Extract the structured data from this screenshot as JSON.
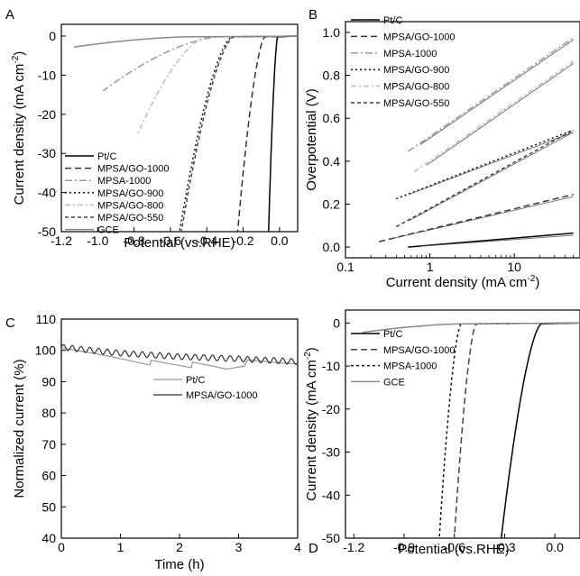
{
  "chart_data": [
    {
      "panel": "A",
      "type": "line",
      "xlabel": "Potential (vs.RHE)",
      "ylabel_main": "Current density (mA cm",
      "ylabel_sup": "-2",
      "ylabel_tail": ")",
      "xlim": [
        -1.2,
        0.1
      ],
      "ylim": [
        -50,
        3
      ],
      "x_ticks": [
        "-1.2",
        "-1.0",
        "-0.8",
        "-0.6",
        "-0.4",
        "-0.2",
        "0.0"
      ],
      "x_tick_values": [
        -1.2,
        -1.0,
        -0.8,
        -0.6,
        -0.4,
        -0.2,
        0.0
      ],
      "y_ticks": [
        "0",
        "-10",
        "-20",
        "-30",
        "-40",
        "-50"
      ],
      "y_tick_values": [
        0,
        -10,
        -20,
        -30,
        -40,
        -50
      ],
      "legend_position": "bottom-left",
      "series": [
        {
          "name": "Pt/C",
          "color": "#000000",
          "dash": "",
          "width": 1.5,
          "onset": -0.01,
          "end_x": -0.06,
          "end_y": -50,
          "k": 0.012
        },
        {
          "name": "MPSA/GO-1000",
          "color": "#333333",
          "dash": "7,4",
          "width": 1.5,
          "onset": -0.08,
          "end_x": -0.23,
          "end_y": -50,
          "k": 0.03
        },
        {
          "name": "MPSA-1000",
          "color": "#999999",
          "dash": "8,3,2,3",
          "width": 1.5,
          "onset": -0.33,
          "end_x": -0.97,
          "end_y": -14,
          "k": 0.2
        },
        {
          "name": "MPSA/GO-900",
          "color": "#111111",
          "dash": "2,3",
          "width": 1.5,
          "onset": -0.26,
          "end_x": -0.55,
          "end_y": -50,
          "k": 0.09
        },
        {
          "name": "MPSA/GO-800",
          "color": "#bbbbbb",
          "dash": "6,3,2,3",
          "width": 1.5,
          "onset": -0.4,
          "end_x": -0.78,
          "end_y": -25,
          "k": 0.13
        },
        {
          "name": "MPSA/GO-550",
          "color": "#444444",
          "dash": "4,3",
          "width": 1.5,
          "onset": -0.25,
          "end_x": -0.54,
          "end_y": -50,
          "k": 0.08
        },
        {
          "name": "GCE",
          "color": "#888888",
          "dash": "",
          "width": 1.5,
          "onset": -0.5,
          "end_x": -1.13,
          "end_y": -2.8,
          "k": 0.3
        }
      ]
    },
    {
      "panel": "B",
      "type": "line",
      "xlabel_main": "Current density (mA cm",
      "xlabel_sup": "-2",
      "xlabel_tail": ")",
      "ylabel": "Overpotential (V)",
      "x_scale": "log",
      "xlim": [
        0.1,
        60
      ],
      "ylim": [
        -0.05,
        1.05
      ],
      "x_ticks": [
        "0.1",
        "1",
        "10"
      ],
      "x_tick_values": [
        0.1,
        1,
        10
      ],
      "y_ticks": [
        "0.0",
        "0.2",
        "0.4",
        "0.6",
        "0.8",
        "1.0"
      ],
      "y_tick_values": [
        0,
        0.2,
        0.4,
        0.6,
        0.8,
        1.0
      ],
      "legend_position": "top-left",
      "series": [
        {
          "name": "Pt/C",
          "color": "#000000",
          "dash": "",
          "width": 1.5,
          "points": [
            [
              0.55,
              0.0
            ],
            [
              50,
              0.065
            ]
          ]
        },
        {
          "name": "MPSA/GO-1000",
          "color": "#333333",
          "dash": "7,4",
          "width": 1.5,
          "points": [
            [
              0.25,
              0.025
            ],
            [
              50,
              0.245
            ]
          ]
        },
        {
          "name": "MPSA-1000",
          "color": "#999999",
          "dash": "8,3,2,3",
          "width": 1.5,
          "points": [
            [
              0.55,
              0.445
            ],
            [
              50,
              0.975
            ]
          ]
        },
        {
          "name": "MPSA/GO-900",
          "color": "#111111",
          "dash": "2,3",
          "width": 1.5,
          "points": [
            [
              0.4,
              0.225
            ],
            [
              50,
              0.545
            ]
          ]
        },
        {
          "name": "MPSA/GO-800",
          "color": "#bbbbbb",
          "dash": "6,3,2,3",
          "width": 1.5,
          "points": [
            [
              0.65,
              0.35
            ],
            [
              50,
              0.865
            ]
          ]
        },
        {
          "name": "MPSA/GO-550",
          "color": "#444444",
          "dash": "4,3",
          "width": 1.5,
          "points": [
            [
              0.4,
              0.095
            ],
            [
              50,
              0.545
            ]
          ]
        }
      ]
    },
    {
      "panel": "C",
      "type": "line",
      "xlabel": "Time (h)",
      "ylabel": "Normalized current (%)",
      "xlim": [
        0,
        4
      ],
      "ylim": [
        40,
        110
      ],
      "x_ticks": [
        "0",
        "1",
        "2",
        "3",
        "4"
      ],
      "x_tick_values": [
        0,
        1,
        2,
        3,
        4
      ],
      "y_ticks": [
        "40",
        "50",
        "60",
        "70",
        "80",
        "90",
        "100",
        "110"
      ],
      "y_tick_values": [
        40,
        50,
        60,
        70,
        80,
        90,
        100,
        110
      ],
      "legend_position": "center-right",
      "series": [
        {
          "name": "Pt/C",
          "color": "#999999",
          "width": 1.2,
          "points": [
            [
              0,
              100.8
            ],
            [
              0.8,
              98.2
            ],
            [
              1.5,
              95.3
            ],
            [
              1.52,
              96.8
            ],
            [
              2.2,
              94.5
            ],
            [
              2.22,
              96.3
            ],
            [
              2.8,
              94.0
            ],
            [
              3.1,
              95.0
            ],
            [
              3.15,
              97.0
            ],
            [
              3.7,
              96.0
            ],
            [
              4.0,
              95.7
            ]
          ]
        },
        {
          "name": "MPSA/GO-1000",
          "color": "#333333",
          "width": 1.2,
          "noisy": true,
          "points": [
            [
              0,
              101.0
            ],
            [
              1,
              99.1
            ],
            [
              2,
              98.0
            ],
            [
              3,
              97.3
            ],
            [
              4,
              96.4
            ]
          ]
        }
      ]
    },
    {
      "panel": "D",
      "type": "line",
      "xlabel": "Potential (vs.RHE)",
      "ylabel_main": "Current density (mA cm",
      "ylabel_sup": "-2",
      "ylabel_tail": ")",
      "xlim": [
        -1.25,
        0.15
      ],
      "ylim": [
        -50,
        3
      ],
      "x_ticks": [
        "-1.2",
        "-0.9",
        "-0.6",
        "-0.3",
        "0.0"
      ],
      "x_tick_values": [
        -1.2,
        -0.9,
        -0.6,
        -0.3,
        0.0
      ],
      "y_ticks": [
        "0",
        "-10",
        "-20",
        "-30",
        "-40",
        "-50"
      ],
      "y_tick_values": [
        0,
        -10,
        -20,
        -30,
        -40,
        -50
      ],
      "legend_position": "top-left",
      "series": [
        {
          "name": "Pt/C",
          "color": "#000000",
          "dash": "",
          "width": 1.5,
          "onset": -0.08,
          "end_x": -0.32,
          "end_y": -50,
          "k": 0.06
        },
        {
          "name": "MPSA/GO-1000",
          "color": "#444444",
          "dash": "7,4",
          "width": 1.5,
          "onset": -0.47,
          "end_x": -0.6,
          "end_y": -50,
          "k": 0.03
        },
        {
          "name": "MPSA-1000",
          "color": "#111111",
          "dash": "3,3",
          "width": 1.5,
          "onset": -0.56,
          "end_x": -0.69,
          "end_y": -50,
          "k": 0.03
        },
        {
          "name": "GCE",
          "color": "#888888",
          "dash": "",
          "width": 1.5,
          "onset": -0.55,
          "end_x": -1.15,
          "end_y": -2.2,
          "k": 0.35
        }
      ]
    }
  ]
}
